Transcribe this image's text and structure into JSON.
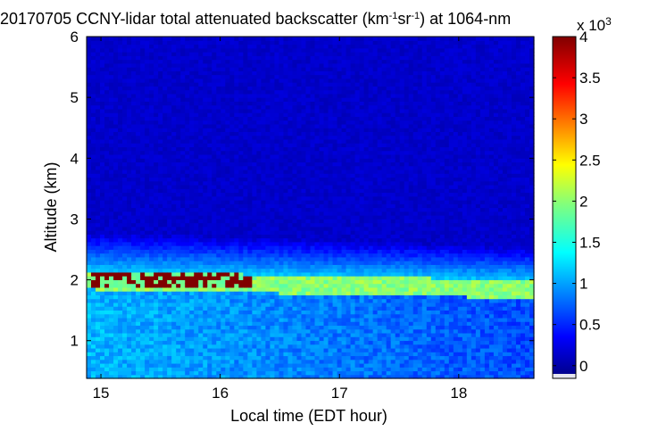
{
  "chart_data": {
    "type": "heatmap",
    "title": {
      "prefix": "20170705 CCNY-lidar total attenuated backscatter (km",
      "sup1": "-1",
      "mid": "sr",
      "sup2": "-1",
      "suffix": ") at 1064-nm"
    },
    "xlabel": "Local time (EDT hour)",
    "ylabel": "Altitude (km)",
    "xlim": [
      14.88,
      18.63
    ],
    "ylim": [
      0.38,
      6.0
    ],
    "x_ticks": [
      "15",
      "16",
      "17",
      "18"
    ],
    "x_tick_values": [
      15,
      16,
      17,
      18
    ],
    "y_ticks": [
      "1",
      "2",
      "3",
      "4",
      "5",
      "6"
    ],
    "y_tick_values": [
      1,
      2,
      3,
      4,
      5,
      6
    ],
    "colorbar": {
      "label": "x 10",
      "exponent": "3",
      "range": [
        -0.1,
        4
      ],
      "ticks": [
        "0",
        "0.5",
        "1",
        "1.5",
        "2",
        "2.5",
        "3",
        "3.5",
        "4"
      ],
      "tick_values": [
        0,
        0.5,
        1,
        1.5,
        2,
        2.5,
        3,
        3.5,
        4
      ],
      "colormap": "jet"
    },
    "features": {
      "aerosol_layer_top_km": [
        2.8,
        2.55
      ],
      "layer_peak_km": [
        2.0,
        1.85
      ],
      "saturated_region_km": [
        1.9,
        2.2
      ],
      "saturated_region_hours": [
        14.9,
        16.25
      ],
      "background_level": 0.2,
      "layer_peak_level": 2.0,
      "below_layer_level": 0.9
    }
  }
}
